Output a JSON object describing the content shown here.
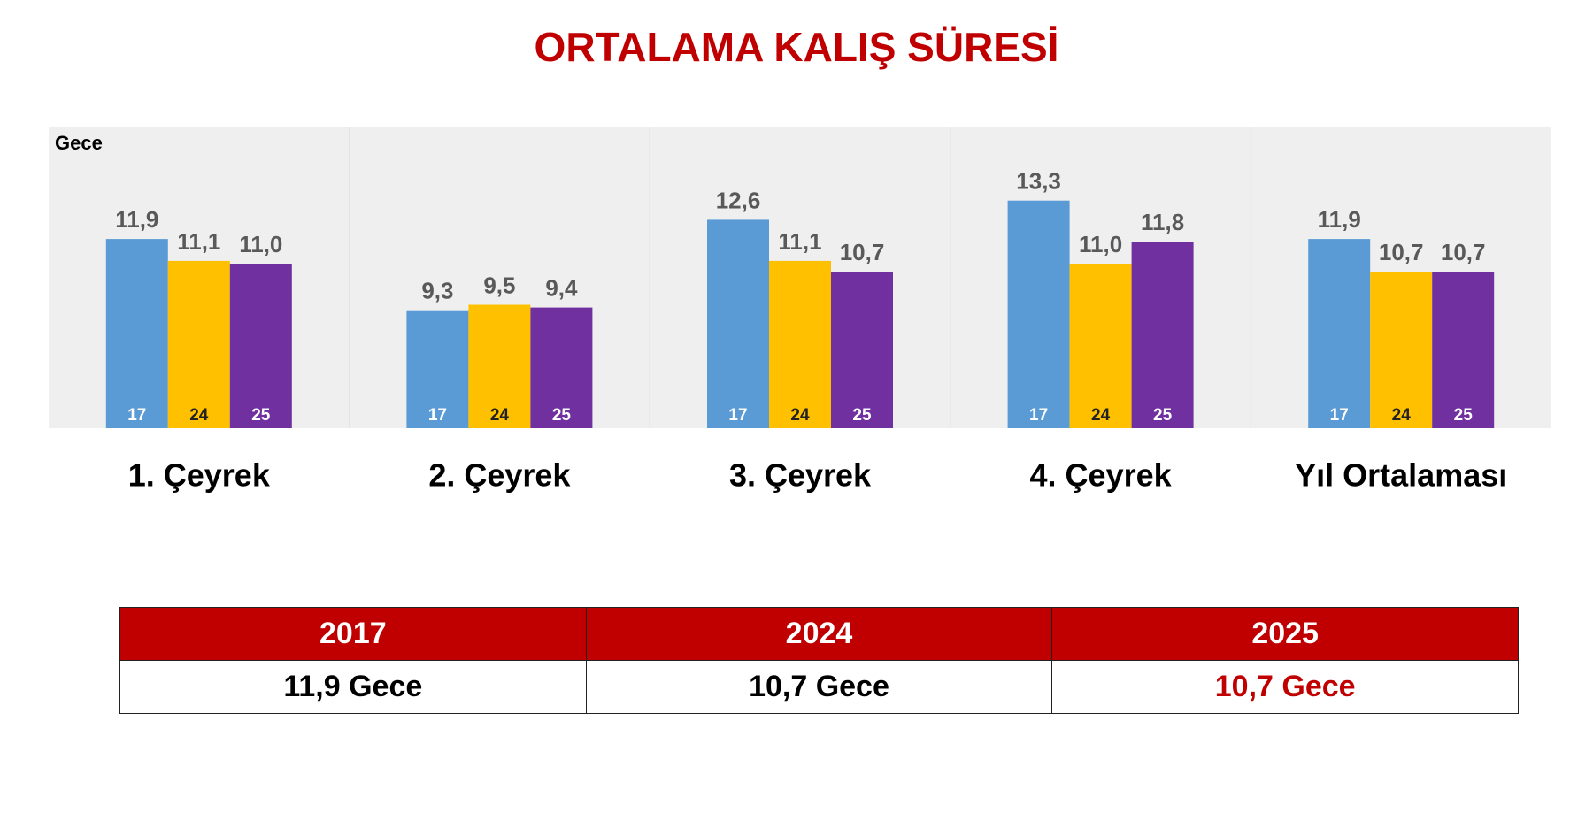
{
  "chart_data": {
    "type": "bar",
    "title": "ORTALAMA KALIŞ SÜRESİ",
    "y_label": "Gece",
    "categories": [
      "1. Çeyrek",
      "2. Çeyrek",
      "3. Çeyrek",
      "4. Çeyrek",
      "Yıl Ortalaması"
    ],
    "series": [
      {
        "name": "17",
        "color": "#5b9bd5",
        "values": [
          11.9,
          9.3,
          12.6,
          13.3,
          11.9
        ],
        "value_labels": [
          "11,9",
          "9,3",
          "12,6",
          "13,3",
          "11,9"
        ]
      },
      {
        "name": "24",
        "color": "#ffc000",
        "values": [
          11.1,
          9.5,
          11.1,
          11.0,
          10.7
        ],
        "value_labels": [
          "11,1",
          "9,5",
          "11,1",
          "11,0",
          "10,7"
        ]
      },
      {
        "name": "25",
        "color": "#7030a0",
        "values": [
          11.0,
          9.4,
          10.7,
          11.8,
          10.7
        ],
        "value_labels": [
          "11,0",
          "9,4",
          "10,7",
          "11,8",
          "10,7"
        ]
      }
    ],
    "ylim": [
      5,
      16
    ]
  },
  "table": {
    "header": [
      "2017",
      "2024",
      "2025"
    ],
    "rows": [
      [
        "11,9 Gece",
        "10,7 Gece",
        "10,7 Gece"
      ]
    ]
  }
}
